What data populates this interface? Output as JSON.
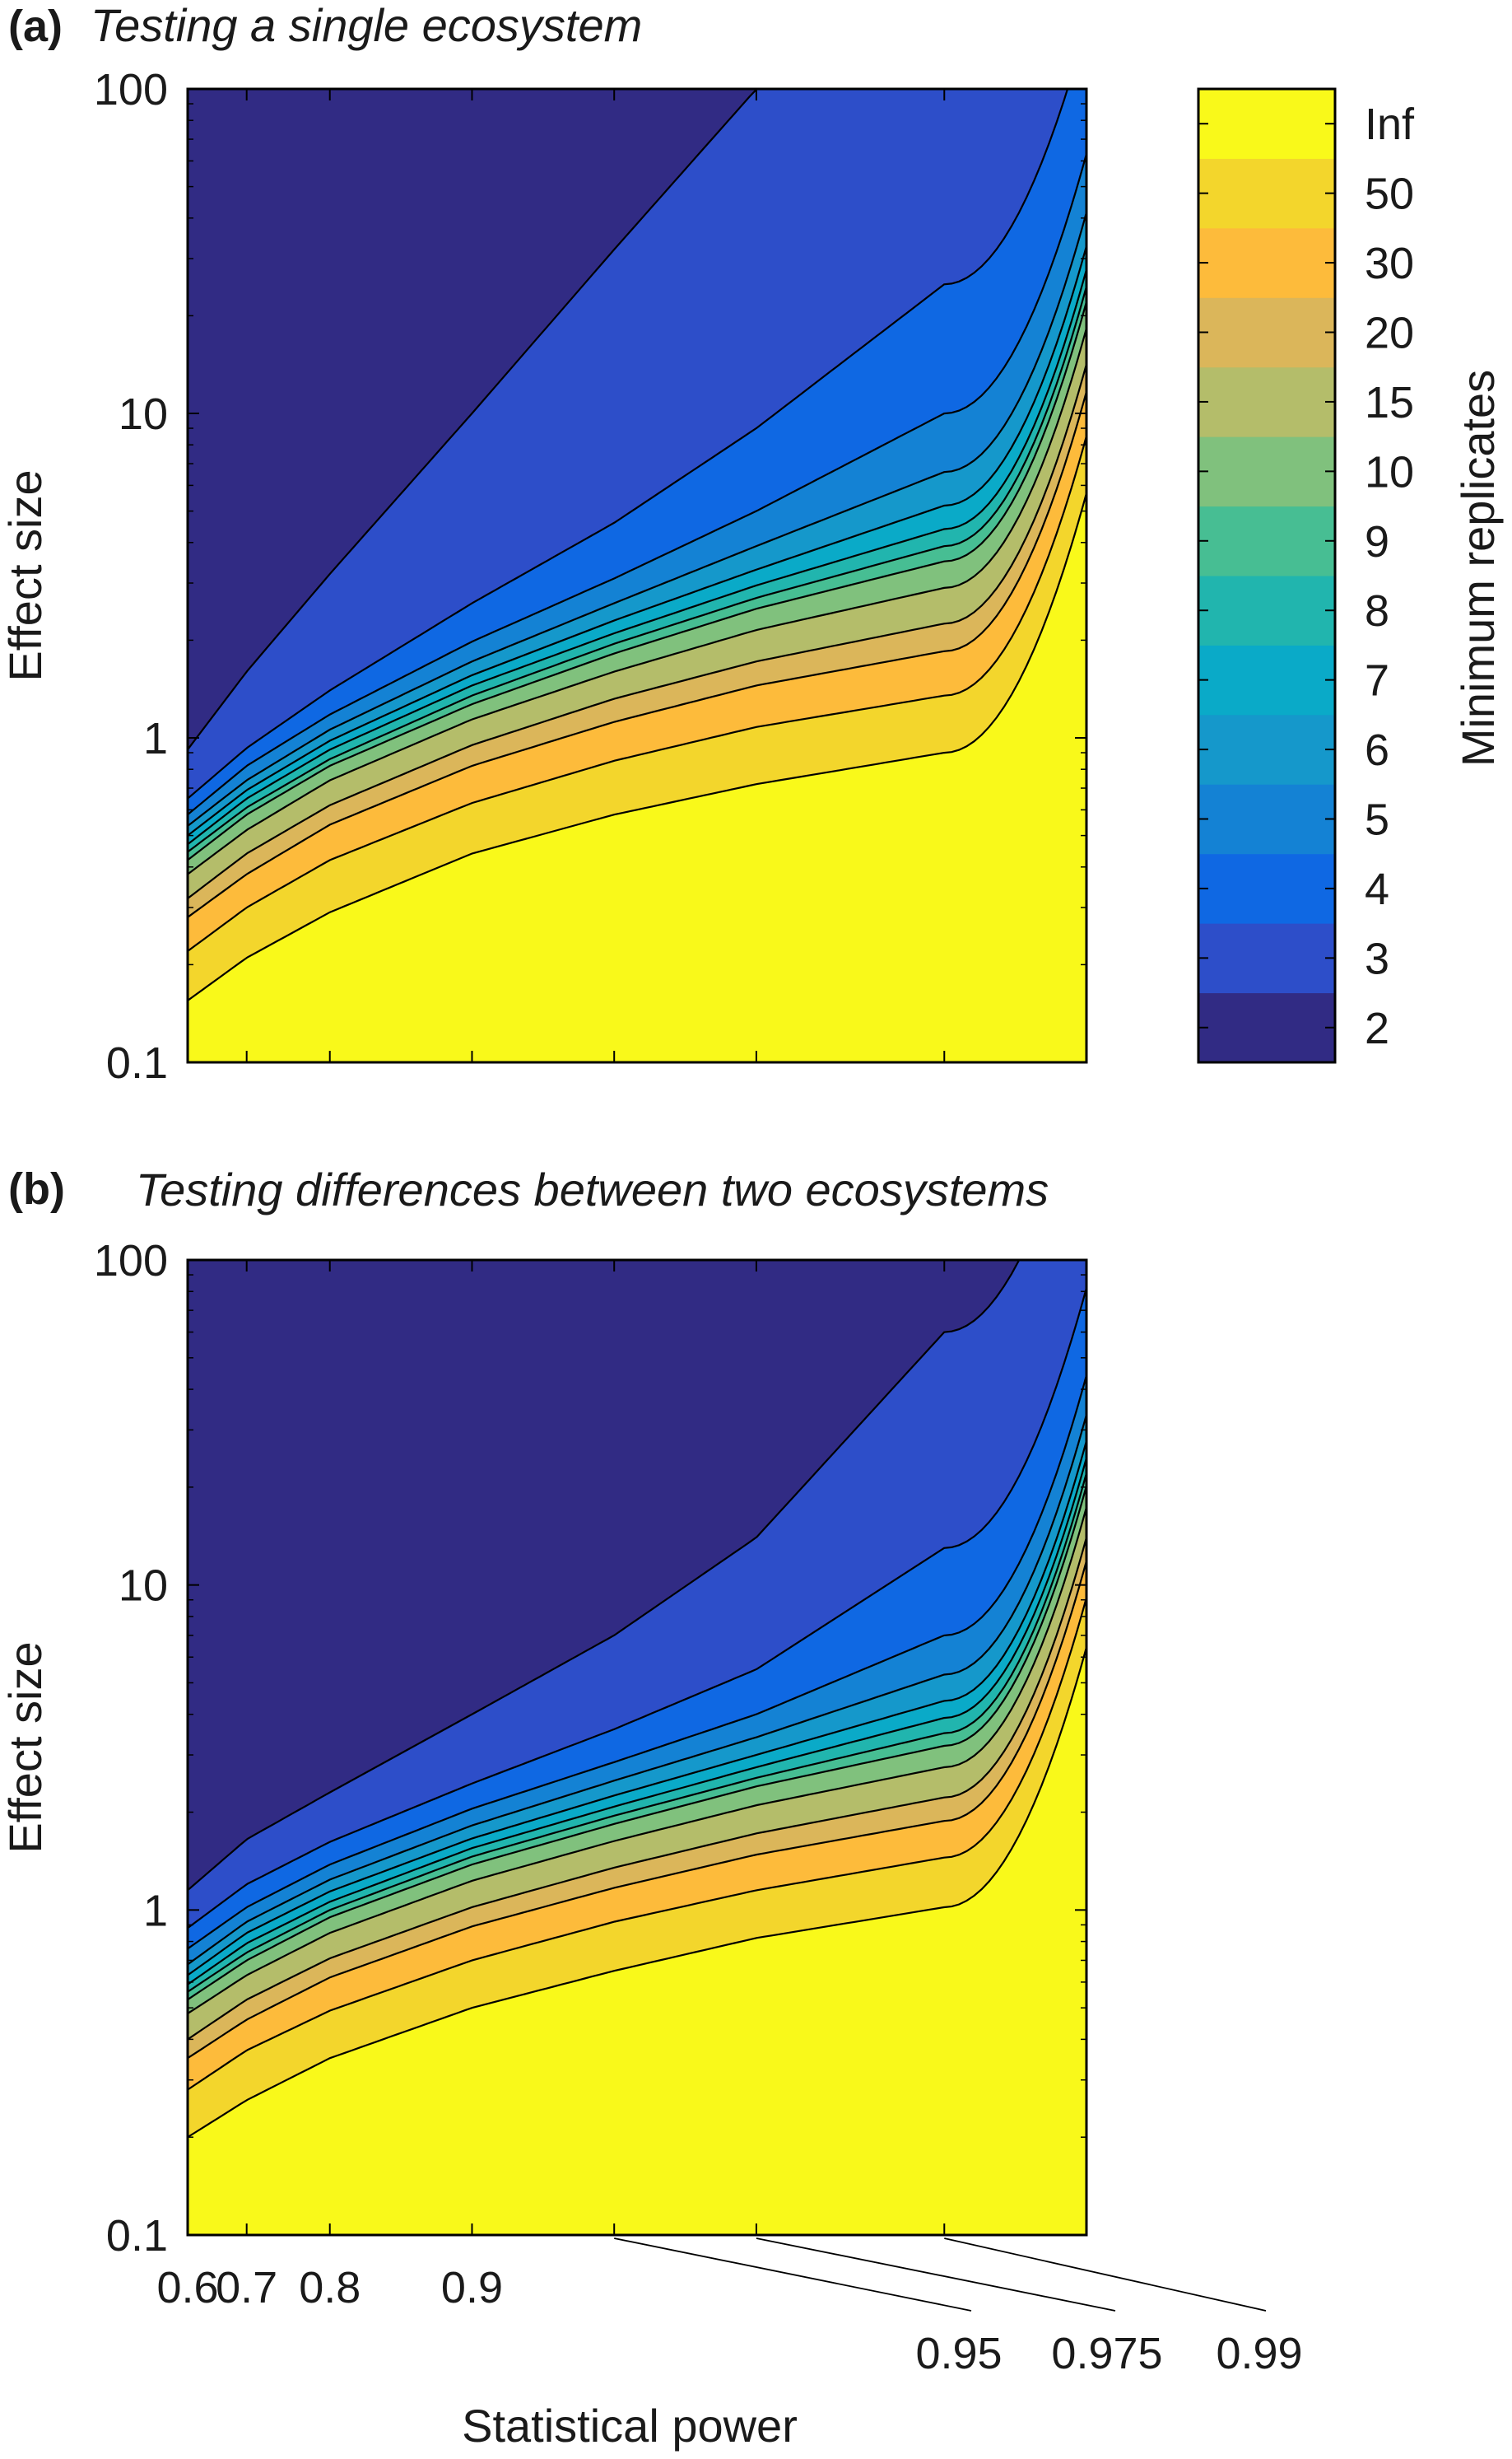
{
  "chart_data": [
    {
      "type": "heatmap",
      "subtype": "filled-contour",
      "panel": "(a)",
      "title": "Testing a single ecosystem",
      "xlabel": "",
      "ylabel": "Effect size",
      "x_scale": "log(1 - power)",
      "y_scale": "log",
      "xlim": [
        0.6,
        0.995
      ],
      "ylim": [
        0.1,
        100
      ],
      "x_ticks": [
        0.6,
        0.7,
        0.8,
        0.9,
        0.95,
        0.975,
        0.99
      ],
      "x_tick_labels": [
        "",
        "",
        "",
        "",
        "",
        "",
        ""
      ],
      "y_ticks": [
        0.1,
        1,
        10,
        100
      ],
      "y_tick_labels": [
        "0.1",
        "1",
        "10",
        "100"
      ],
      "boundaries": [
        {
          "level": "2|3",
          "points": [
            [
              0.6,
              0.92
            ],
            [
              0.7,
              1.6
            ],
            [
              0.8,
              3.2
            ],
            [
              0.9,
              10
            ],
            [
              0.95,
              32
            ],
            [
              0.975,
              100
            ]
          ]
        },
        {
          "level": "3|4",
          "points": [
            [
              0.6,
              0.65
            ],
            [
              0.7,
              0.93
            ],
            [
              0.8,
              1.4
            ],
            [
              0.9,
              2.6
            ],
            [
              0.95,
              4.6
            ],
            [
              0.975,
              9
            ],
            [
              0.99,
              25
            ]
          ]
        },
        {
          "level": "4|5",
          "points": [
            [
              0.6,
              0.58
            ],
            [
              0.7,
              0.82
            ],
            [
              0.8,
              1.18
            ],
            [
              0.9,
              1.98
            ],
            [
              0.95,
              3.1
            ],
            [
              0.975,
              5
            ],
            [
              0.99,
              10
            ]
          ]
        },
        {
          "level": "5|6",
          "points": [
            [
              0.6,
              0.535
            ],
            [
              0.7,
              0.74
            ],
            [
              0.8,
              1.06
            ],
            [
              0.9,
              1.72
            ],
            [
              0.95,
              2.6
            ],
            [
              0.975,
              3.9
            ],
            [
              0.99,
              6.6
            ]
          ]
        },
        {
          "level": "6|7",
          "points": [
            [
              0.6,
              0.5
            ],
            [
              0.7,
              0.69
            ],
            [
              0.8,
              0.98
            ],
            [
              0.9,
              1.56
            ],
            [
              0.95,
              2.3
            ],
            [
              0.975,
              3.3
            ],
            [
              0.99,
              5.2
            ]
          ]
        },
        {
          "level": "7|8",
          "points": [
            [
              0.6,
              0.47
            ],
            [
              0.7,
              0.65
            ],
            [
              0.8,
              0.92
            ],
            [
              0.9,
              1.45
            ],
            [
              0.95,
              2.1
            ],
            [
              0.975,
              2.95
            ],
            [
              0.99,
              4.4
            ]
          ]
        },
        {
          "level": "8|9",
          "points": [
            [
              0.6,
              0.445
            ],
            [
              0.7,
              0.61
            ],
            [
              0.8,
              0.86
            ],
            [
              0.9,
              1.35
            ],
            [
              0.95,
              1.95
            ],
            [
              0.975,
              2.7
            ],
            [
              0.99,
              3.9
            ]
          ]
        },
        {
          "level": "9|10",
          "points": [
            [
              0.6,
              0.42
            ],
            [
              0.7,
              0.58
            ],
            [
              0.8,
              0.82
            ],
            [
              0.9,
              1.27
            ],
            [
              0.95,
              1.82
            ],
            [
              0.975,
              2.5
            ],
            [
              0.99,
              3.5
            ]
          ]
        },
        {
          "level": "10|15",
          "points": [
            [
              0.6,
              0.38
            ],
            [
              0.7,
              0.52
            ],
            [
              0.8,
              0.74
            ],
            [
              0.9,
              1.14
            ],
            [
              0.95,
              1.6
            ],
            [
              0.975,
              2.15
            ],
            [
              0.99,
              2.9
            ]
          ]
        },
        {
          "level": "15|20",
          "points": [
            [
              0.6,
              0.32
            ],
            [
              0.7,
              0.44
            ],
            [
              0.8,
              0.62
            ],
            [
              0.9,
              0.95
            ],
            [
              0.95,
              1.32
            ],
            [
              0.975,
              1.72
            ],
            [
              0.99,
              2.25
            ]
          ]
        },
        {
          "level": "20|30",
          "points": [
            [
              0.6,
              0.28
            ],
            [
              0.7,
              0.38
            ],
            [
              0.8,
              0.54
            ],
            [
              0.9,
              0.82
            ],
            [
              0.95,
              1.12
            ],
            [
              0.975,
              1.45
            ],
            [
              0.99,
              1.85
            ]
          ]
        },
        {
          "level": "30|50",
          "points": [
            [
              0.6,
              0.22
            ],
            [
              0.7,
              0.3
            ],
            [
              0.8,
              0.42
            ],
            [
              0.9,
              0.63
            ],
            [
              0.95,
              0.85
            ],
            [
              0.975,
              1.08
            ],
            [
              0.99,
              1.35
            ]
          ]
        },
        {
          "level": "50|Inf",
          "points": [
            [
              0.6,
              0.155
            ],
            [
              0.7,
              0.21
            ],
            [
              0.8,
              0.29
            ],
            [
              0.9,
              0.44
            ],
            [
              0.95,
              0.58
            ],
            [
              0.975,
              0.72
            ],
            [
              0.99,
              0.9
            ]
          ]
        }
      ]
    },
    {
      "type": "heatmap",
      "subtype": "filled-contour",
      "panel": "(b)",
      "title": "Testing differences between two ecosystems",
      "xlabel": "Statistical power",
      "ylabel": "Effect size",
      "x_scale": "log(1 - power)",
      "y_scale": "log",
      "xlim": [
        0.6,
        0.995
      ],
      "ylim": [
        0.1,
        100
      ],
      "x_ticks": [
        0.6,
        0.7,
        0.8,
        0.9,
        0.95,
        0.975,
        0.99
      ],
      "x_tick_labels": [
        "0.6",
        "0.7",
        "0.8",
        "0.9",
        "0.95",
        "0.975",
        "0.99"
      ],
      "y_ticks": [
        0.1,
        1,
        10,
        100
      ],
      "y_tick_labels": [
        "0.1",
        "1",
        "10",
        "100"
      ],
      "boundaries": [
        {
          "level": "2|3",
          "points": [
            [
              0.6,
              1.15
            ],
            [
              0.7,
              1.65
            ],
            [
              0.8,
              2.3
            ],
            [
              0.9,
              4
            ],
            [
              0.95,
              7
            ],
            [
              0.975,
              14
            ],
            [
              0.99,
              60
            ]
          ]
        },
        {
          "level": "3|4",
          "points": [
            [
              0.6,
              0.88
            ],
            [
              0.7,
              1.2
            ],
            [
              0.8,
              1.62
            ],
            [
              0.9,
              2.45
            ],
            [
              0.95,
              3.6
            ],
            [
              0.975,
              5.5
            ],
            [
              0.99,
              13
            ]
          ]
        },
        {
          "level": "4|5",
          "points": [
            [
              0.6,
              0.76
            ],
            [
              0.7,
              1.02
            ],
            [
              0.8,
              1.38
            ],
            [
              0.9,
              2.05
            ],
            [
              0.95,
              2.85
            ],
            [
              0.975,
              4
            ],
            [
              0.99,
              7
            ]
          ]
        },
        {
          "level": "5|6",
          "points": [
            [
              0.6,
              0.68
            ],
            [
              0.7,
              0.92
            ],
            [
              0.8,
              1.24
            ],
            [
              0.9,
              1.82
            ],
            [
              0.95,
              2.5
            ],
            [
              0.975,
              3.4
            ],
            [
              0.99,
              5.3
            ]
          ]
        },
        {
          "level": "6|7",
          "points": [
            [
              0.6,
              0.63
            ],
            [
              0.7,
              0.85
            ],
            [
              0.8,
              1.14
            ],
            [
              0.9,
              1.66
            ],
            [
              0.95,
              2.25
            ],
            [
              0.975,
              3.0
            ],
            [
              0.99,
              4.4
            ]
          ]
        },
        {
          "level": "7|8",
          "points": [
            [
              0.6,
              0.59
            ],
            [
              0.7,
              0.79
            ],
            [
              0.8,
              1.06
            ],
            [
              0.9,
              1.55
            ],
            [
              0.95,
              2.08
            ],
            [
              0.975,
              2.75
            ],
            [
              0.99,
              3.9
            ]
          ]
        },
        {
          "level": "8|9",
          "points": [
            [
              0.6,
              0.56
            ],
            [
              0.7,
              0.74
            ],
            [
              0.8,
              1.0
            ],
            [
              0.9,
              1.46
            ],
            [
              0.95,
              1.95
            ],
            [
              0.975,
              2.55
            ],
            [
              0.99,
              3.5
            ]
          ]
        },
        {
          "level": "9|10",
          "points": [
            [
              0.6,
              0.53
            ],
            [
              0.7,
              0.7
            ],
            [
              0.8,
              0.95
            ],
            [
              0.9,
              1.38
            ],
            [
              0.95,
              1.84
            ],
            [
              0.975,
              2.4
            ],
            [
              0.99,
              3.2
            ]
          ]
        },
        {
          "level": "10|15",
          "points": [
            [
              0.6,
              0.48
            ],
            [
              0.7,
              0.63
            ],
            [
              0.8,
              0.85
            ],
            [
              0.9,
              1.23
            ],
            [
              0.95,
              1.63
            ],
            [
              0.975,
              2.1
            ],
            [
              0.99,
              2.75
            ]
          ]
        },
        {
          "level": "15|20",
          "points": [
            [
              0.6,
              0.4
            ],
            [
              0.7,
              0.53
            ],
            [
              0.8,
              0.71
            ],
            [
              0.9,
              1.02
            ],
            [
              0.95,
              1.35
            ],
            [
              0.975,
              1.72
            ],
            [
              0.99,
              2.22
            ]
          ]
        },
        {
          "level": "20|30",
          "points": [
            [
              0.6,
              0.35
            ],
            [
              0.7,
              0.46
            ],
            [
              0.8,
              0.62
            ],
            [
              0.9,
              0.89
            ],
            [
              0.95,
              1.17
            ],
            [
              0.975,
              1.48
            ],
            [
              0.99,
              1.88
            ]
          ]
        },
        {
          "level": "30|50",
          "points": [
            [
              0.6,
              0.28
            ],
            [
              0.7,
              0.37
            ],
            [
              0.8,
              0.49
            ],
            [
              0.9,
              0.7
            ],
            [
              0.95,
              0.92
            ],
            [
              0.975,
              1.15
            ],
            [
              0.99,
              1.45
            ]
          ]
        },
        {
          "level": "50|Inf",
          "points": [
            [
              0.6,
              0.2
            ],
            [
              0.7,
              0.26
            ],
            [
              0.8,
              0.35
            ],
            [
              0.9,
              0.5
            ],
            [
              0.95,
              0.65
            ],
            [
              0.975,
              0.82
            ],
            [
              0.99,
              1.02
            ]
          ]
        }
      ]
    }
  ],
  "colorbar": {
    "label": "Minimum replicates",
    "levels": [
      {
        "label": "2",
        "color": "#312b84"
      },
      {
        "label": "3",
        "color": "#2d4ec9"
      },
      {
        "label": "4",
        "color": "#0f68e3"
      },
      {
        "label": "5",
        "color": "#1482d4"
      },
      {
        "label": "6",
        "color": "#1598cb"
      },
      {
        "label": "7",
        "color": "#0aaac8"
      },
      {
        "label": "8",
        "color": "#21b5ae"
      },
      {
        "label": "9",
        "color": "#47be93"
      },
      {
        "label": "10",
        "color": "#80c17d"
      },
      {
        "label": "15",
        "color": "#b4bd6a"
      },
      {
        "label": "20",
        "color": "#dbb65a"
      },
      {
        "label": "30",
        "color": "#fdbb3b"
      },
      {
        "label": "50",
        "color": "#f3d62c"
      },
      {
        "label": "Inf",
        "color": "#f9f91a"
      }
    ]
  }
}
